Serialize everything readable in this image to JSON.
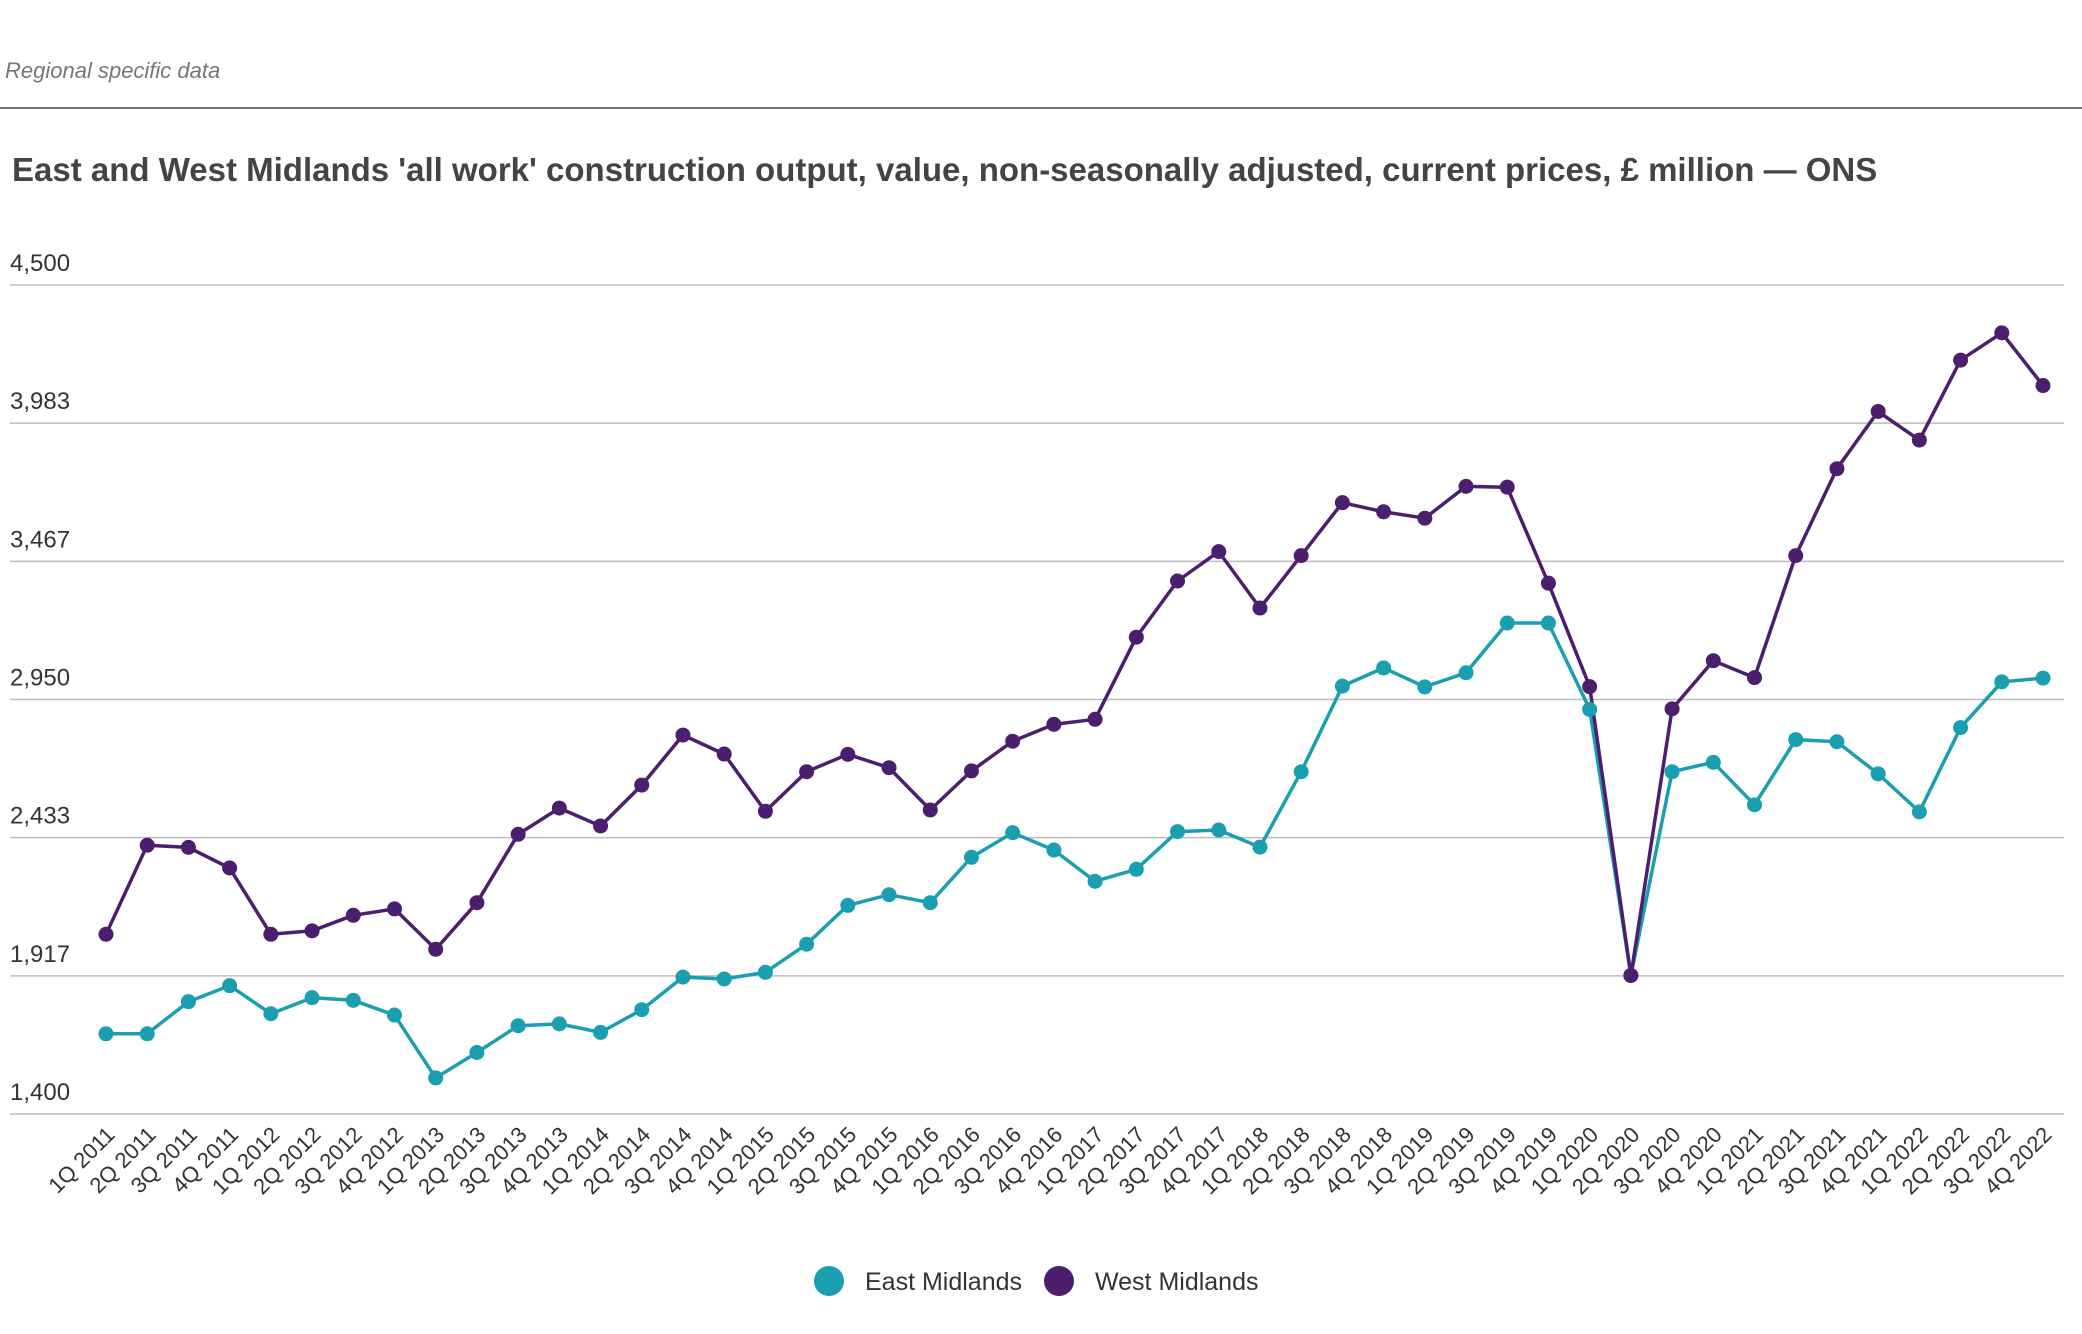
{
  "header": {
    "label": "Regional specific data"
  },
  "chart_data": {
    "type": "line",
    "title": "East and West Midlands 'all work' construction output, value, non-seasonally adjusted, current prices, £ million — ONS",
    "xlabel": "",
    "ylabel": "",
    "ylim": [
      1400,
      4500
    ],
    "yticks": [
      "1,400",
      "1,917",
      "2,433",
      "2,950",
      "3,467",
      "3,983",
      "4,500"
    ],
    "grid": true,
    "legend_position": "bottom-center",
    "categories": [
      "1Q 2011",
      "2Q 2011",
      "3Q 2011",
      "4Q 2011",
      "1Q 2012",
      "2Q 2012",
      "3Q 2012",
      "4Q 2012",
      "1Q 2013",
      "2Q 2013",
      "3Q 2013",
      "4Q 2013",
      "1Q 2014",
      "2Q 2014",
      "3Q 2014",
      "4Q 2014",
      "1Q 2015",
      "2Q 2015",
      "3Q 2015",
      "4Q 2015",
      "1Q 2016",
      "2Q 2016",
      "3Q 2016",
      "4Q 2016",
      "1Q 2017",
      "2Q 2017",
      "3Q 2017",
      "4Q 2017",
      "1Q 2018",
      "2Q 2018",
      "3Q 2018",
      "4Q 2018",
      "1Q 2019",
      "2Q 2019",
      "3Q 2019",
      "4Q 2019",
      "1Q 2020",
      "2Q 2020",
      "3Q 2020",
      "4Q 2020",
      "1Q 2021",
      "2Q 2021",
      "3Q 2021",
      "4Q 2021",
      "1Q 2022",
      "2Q 2022",
      "3Q 2022",
      "4Q 2022"
    ],
    "series": [
      {
        "name": "East Midlands",
        "color": "#1a9fb1",
        "values": [
          1700,
          1700,
          1820,
          1880,
          1775,
          1835,
          1825,
          1770,
          1535,
          1630,
          1730,
          1737,
          1705,
          1790,
          1912,
          1905,
          1930,
          2035,
          2180,
          2220,
          2190,
          2360,
          2452,
          2387,
          2270,
          2315,
          2456,
          2462,
          2398,
          2680,
          3000,
          3068,
          2997,
          3050,
          3236,
          3236,
          2913,
          1918,
          2680,
          2715,
          2556,
          2800,
          2792,
          2672,
          2530,
          2845,
          3016,
          3030
        ]
      },
      {
        "name": "West Midlands",
        "color": "#4b1e6e",
        "values": [
          2072,
          2405,
          2397,
          2320,
          2072,
          2085,
          2143,
          2167,
          2016,
          2190,
          2446,
          2544,
          2477,
          2630,
          2817,
          2746,
          2532,
          2680,
          2745,
          2695,
          2537,
          2683,
          2794,
          2857,
          2876,
          3183,
          3393,
          3503,
          3292,
          3488,
          3686,
          3652,
          3628,
          3747,
          3744,
          3385,
          2998,
          1918,
          2915,
          3095,
          3032,
          3488,
          3813,
          4027,
          3920,
          4219,
          4321,
          4124
        ]
      }
    ]
  }
}
